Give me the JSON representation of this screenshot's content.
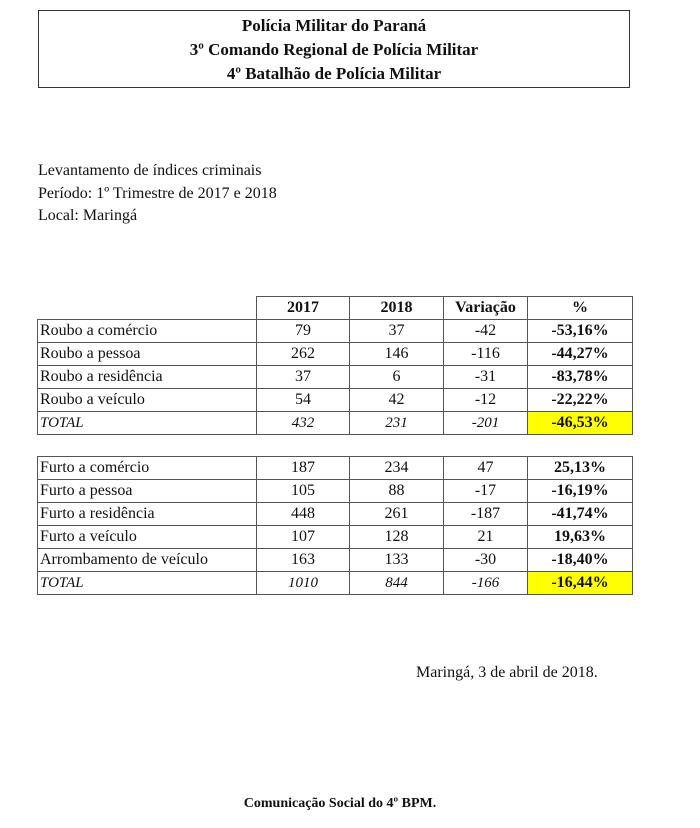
{
  "header": {
    "line1": "Polícia Militar do Paraná",
    "line2": "3º Comando Regional de Polícia Militar",
    "line3": "4º Batalhão de Polícia Militar"
  },
  "intro": {
    "title": "Levantamento de índices criminais",
    "period": "Período: 1º Trimestre de 2017 e 2018",
    "location": "Local: Maringá"
  },
  "columns": [
    "",
    "2017",
    "2018",
    "Variação",
    "%"
  ],
  "highlight_color": "#ffff00",
  "robbery_table": {
    "rows": [
      {
        "label": "Roubo a comércio",
        "y2017": "79",
        "y2018": "37",
        "variation": "-42",
        "pct": "-53,16%"
      },
      {
        "label": "Roubo a pessoa",
        "y2017": "262",
        "y2018": "146",
        "variation": "-116",
        "pct": "-44,27%"
      },
      {
        "label": "Roubo a residência",
        "y2017": "37",
        "y2018": "6",
        "variation": "-31",
        "pct": "-83,78%"
      },
      {
        "label": "Roubo a veículo",
        "y2017": "54",
        "y2018": "42",
        "variation": "-12",
        "pct": "-22,22%"
      }
    ],
    "total": {
      "label": "TOTAL",
      "y2017": "432",
      "y2018": "231",
      "variation": "-201",
      "pct": "-46,53%"
    }
  },
  "theft_table": {
    "rows": [
      {
        "label": "Furto a comércio",
        "y2017": "187",
        "y2018": "234",
        "variation": "47",
        "pct": "25,13%"
      },
      {
        "label": "Furto a pessoa",
        "y2017": "105",
        "y2018": "88",
        "variation": "-17",
        "pct": "-16,19%"
      },
      {
        "label": "Furto a residência",
        "y2017": "448",
        "y2018": "261",
        "variation": "-187",
        "pct": "-41,74%"
      },
      {
        "label": "Furto a veículo",
        "y2017": "107",
        "y2018": "128",
        "variation": "21",
        "pct": "19,63%"
      },
      {
        "label": "Arrombamento de veículo",
        "y2017": "163",
        "y2018": "133",
        "variation": "-30",
        "pct": "-18,40%"
      }
    ],
    "total": {
      "label": "TOTAL",
      "y2017": "1010",
      "y2018": "844",
      "variation": "-166",
      "pct": "-16,44%"
    }
  },
  "date_line": "Maringá, 3 de abril de 2018.",
  "footer": "Comunicação Social do 4º BPM."
}
